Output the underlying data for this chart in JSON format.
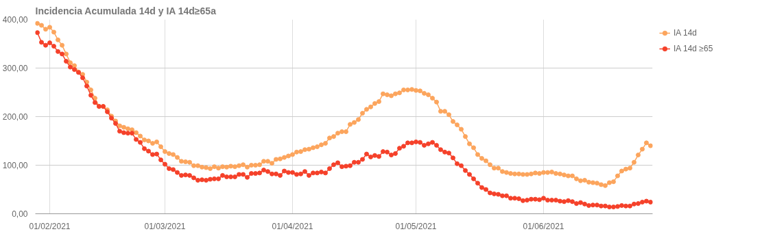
{
  "chart_data": {
    "type": "line",
    "title": "Incidencia Acumulada 14d y IA 14d≥65a",
    "x": [
      "2021-01-29",
      "2021-01-30",
      "2021-01-31",
      "2021-02-01",
      "2021-02-02",
      "2021-02-03",
      "2021-02-04",
      "2021-02-05",
      "2021-02-06",
      "2021-02-07",
      "2021-02-08",
      "2021-02-09",
      "2021-02-10",
      "2021-02-11",
      "2021-02-12",
      "2021-02-13",
      "2021-02-14",
      "2021-02-15",
      "2021-02-16",
      "2021-02-17",
      "2021-02-18",
      "2021-02-19",
      "2021-02-20",
      "2021-02-21",
      "2021-02-22",
      "2021-02-23",
      "2021-02-24",
      "2021-02-25",
      "2021-02-26",
      "2021-02-27",
      "2021-02-28",
      "2021-03-01",
      "2021-03-02",
      "2021-03-03",
      "2021-03-04",
      "2021-03-05",
      "2021-03-06",
      "2021-03-07",
      "2021-03-08",
      "2021-03-09",
      "2021-03-10",
      "2021-03-11",
      "2021-03-12",
      "2021-03-13",
      "2021-03-14",
      "2021-03-15",
      "2021-03-16",
      "2021-03-17",
      "2021-03-18",
      "2021-03-19",
      "2021-03-20",
      "2021-03-21",
      "2021-03-22",
      "2021-03-23",
      "2021-03-24",
      "2021-03-25",
      "2021-03-26",
      "2021-03-27",
      "2021-03-28",
      "2021-03-29",
      "2021-03-30",
      "2021-03-31",
      "2021-04-01",
      "2021-04-02",
      "2021-04-03",
      "2021-04-04",
      "2021-04-05",
      "2021-04-06",
      "2021-04-07",
      "2021-04-08",
      "2021-04-09",
      "2021-04-10",
      "2021-04-11",
      "2021-04-12",
      "2021-04-13",
      "2021-04-14",
      "2021-04-15",
      "2021-04-16",
      "2021-04-17",
      "2021-04-18",
      "2021-04-19",
      "2021-04-20",
      "2021-04-21",
      "2021-04-22",
      "2021-04-23",
      "2021-04-24",
      "2021-04-25",
      "2021-04-26",
      "2021-04-27",
      "2021-04-28",
      "2021-04-29",
      "2021-04-30",
      "2021-05-01",
      "2021-05-02",
      "2021-05-03",
      "2021-05-04",
      "2021-05-05",
      "2021-05-06",
      "2021-05-07",
      "2021-05-08",
      "2021-05-09",
      "2021-05-10",
      "2021-05-11",
      "2021-05-12",
      "2021-05-13",
      "2021-05-14",
      "2021-05-15",
      "2021-05-16",
      "2021-05-17",
      "2021-05-18",
      "2021-05-19",
      "2021-05-20",
      "2021-05-21",
      "2021-05-22",
      "2021-05-23",
      "2021-05-24",
      "2021-05-25",
      "2021-05-26",
      "2021-05-27",
      "2021-05-28",
      "2021-05-29",
      "2021-05-30",
      "2021-05-31",
      "2021-06-01",
      "2021-06-02",
      "2021-06-03",
      "2021-06-04",
      "2021-06-05",
      "2021-06-06",
      "2021-06-07",
      "2021-06-08",
      "2021-06-09",
      "2021-06-10",
      "2021-06-11",
      "2021-06-12",
      "2021-06-13",
      "2021-06-14",
      "2021-06-15",
      "2021-06-16",
      "2021-06-17",
      "2021-06-18",
      "2021-06-19",
      "2021-06-20",
      "2021-06-21",
      "2021-06-22",
      "2021-06-23",
      "2021-06-24",
      "2021-06-25",
      "2021-06-26",
      "2021-06-27"
    ],
    "series": [
      {
        "name": "IA 14d",
        "color": "#fca55d",
        "values": [
          392,
          388,
          380,
          384,
          374,
          358,
          347,
          329,
          311,
          305,
          292,
          287,
          271,
          255,
          238,
          221,
          221,
          214,
          201,
          191,
          181,
          178,
          175,
          173,
          167,
          160,
          152,
          150,
          145,
          148,
          138,
          128,
          124,
          122,
          116,
          108,
          107,
          106,
          99,
          99,
          96,
          95,
          93,
          97,
          94,
          97,
          96,
          98,
          97,
          99,
          101,
          96,
          100,
          100,
          101,
          108,
          108,
          104,
          112,
          113,
          116,
          119,
          122,
          127,
          128,
          132,
          133,
          136,
          138,
          142,
          145,
          156,
          159,
          166,
          169,
          169,
          184,
          188,
          194,
          207,
          215,
          220,
          227,
          231,
          247,
          245,
          243,
          247,
          249,
          255,
          255,
          256,
          254,
          253,
          248,
          245,
          238,
          230,
          211,
          211,
          204,
          190,
          183,
          174,
          159,
          144,
          136,
          122,
          114,
          109,
          101,
          94,
          94,
          87,
          85,
          83,
          82,
          82,
          81,
          81,
          82,
          84,
          83,
          85,
          85,
          86,
          83,
          82,
          80,
          78,
          78,
          72,
          68,
          69,
          65,
          64,
          63,
          60,
          58,
          64,
          66,
          78,
          88,
          92,
          94,
          106,
          121,
          133,
          146,
          140
        ]
      },
      {
        "name": "IA 14d ≥65",
        "color": "#f5412a",
        "values": [
          373,
          353,
          347,
          352,
          345,
          334,
          329,
          314,
          302,
          297,
          291,
          280,
          263,
          244,
          229,
          221,
          221,
          210,
          197,
          186,
          170,
          167,
          166,
          166,
          153,
          147,
          134,
          129,
          122,
          123,
          111,
          102,
          93,
          91,
          85,
          79,
          80,
          79,
          74,
          69,
          70,
          69,
          71,
          72,
          72,
          79,
          76,
          76,
          76,
          81,
          81,
          75,
          83,
          83,
          84,
          90,
          87,
          82,
          82,
          79,
          88,
          85,
          85,
          81,
          82,
          87,
          79,
          84,
          84,
          86,
          84,
          93,
          101,
          105,
          97,
          98,
          99,
          106,
          106,
          112,
          123,
          117,
          120,
          118,
          128,
          127,
          121,
          124,
          135,
          139,
          146,
          146,
          148,
          147,
          141,
          144,
          147,
          141,
          132,
          127,
          125,
          115,
          103,
          99,
          89,
          81,
          72,
          63,
          54,
          50,
          43,
          41,
          40,
          37,
          37,
          32,
          32,
          31,
          27,
          28,
          30,
          30,
          29,
          32,
          28,
          28,
          28,
          26,
          25,
          27,
          25,
          21,
          23,
          20,
          17,
          18,
          18,
          16,
          16,
          14,
          14,
          15,
          17,
          16,
          16,
          20,
          21,
          24,
          26,
          24
        ]
      }
    ],
    "xlim": [
      "2021-01-28T12:00",
      "2021-06-27T12:00"
    ],
    "xticks": [
      {
        "value": "2021-02-01",
        "label": "01/02/2021"
      },
      {
        "value": "2021-03-01",
        "label": "01/03/2021"
      },
      {
        "value": "2021-04-01",
        "label": "01/04/2021"
      },
      {
        "value": "2021-05-01",
        "label": "01/05/2021"
      },
      {
        "value": "2021-06-01",
        "label": "01/06/2021"
      }
    ],
    "ylim": [
      0,
      400
    ],
    "yticks": [
      {
        "value": 0,
        "label": "0,00"
      },
      {
        "value": 100,
        "label": "100,00"
      },
      {
        "value": 200,
        "label": "200,00"
      },
      {
        "value": 300,
        "label": "300,00"
      },
      {
        "value": 400,
        "label": "400,00"
      }
    ],
    "grid": true,
    "legend": "right",
    "marker": "circle",
    "line_style": "solid"
  }
}
